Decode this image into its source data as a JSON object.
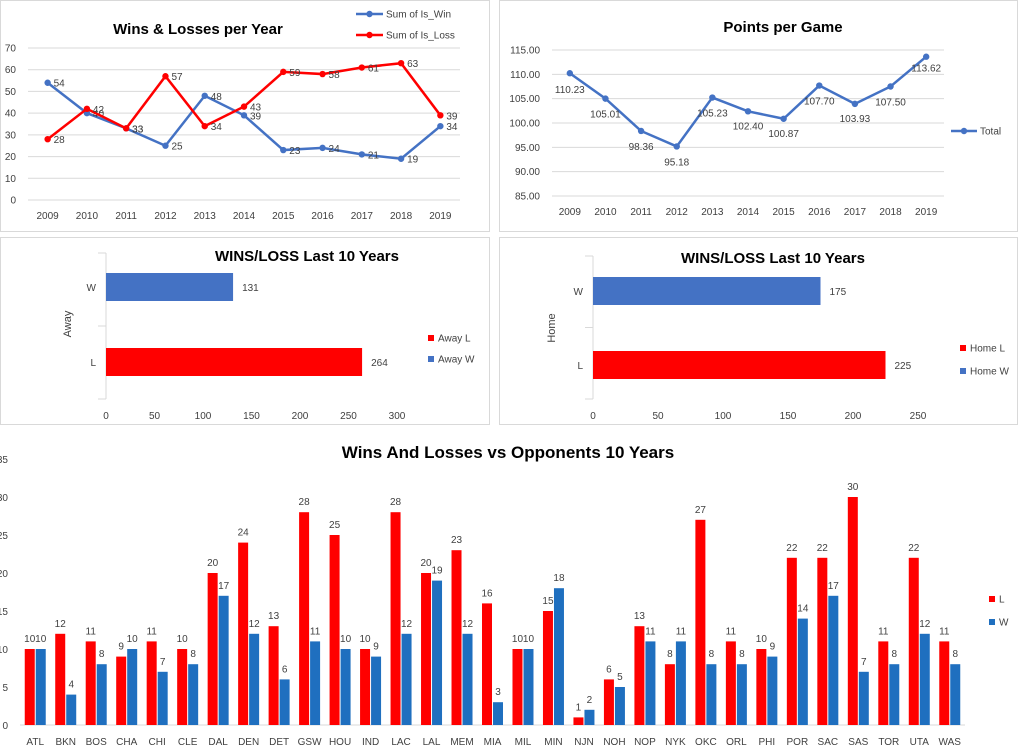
{
  "chart_data": [
    {
      "type": "line",
      "title": "Wins & Losses  per Year",
      "categories": [
        "2009",
        "2010",
        "2011",
        "2012",
        "2013",
        "2014",
        "2015",
        "2016",
        "2017",
        "2018",
        "2019"
      ],
      "series": [
        {
          "name": "Sum of Is_Win",
          "values": [
            54,
            40,
            33,
            25,
            48,
            39,
            23,
            24,
            21,
            19,
            34
          ],
          "color": "#4472c4"
        },
        {
          "name": "Sum of Is_Loss",
          "values": [
            28,
            42,
            33,
            57,
            34,
            43,
            59,
            58,
            61,
            63,
            39
          ],
          "color": "#ff0000"
        }
      ],
      "ylim": [
        0,
        70
      ],
      "yticks": [
        "0",
        "10",
        "20",
        "30",
        "40",
        "50",
        "60",
        "70"
      ],
      "grid": true,
      "legend": "top-right"
    },
    {
      "type": "line",
      "title": "Points per Game",
      "categories": [
        "2009",
        "2010",
        "2011",
        "2012",
        "2013",
        "2014",
        "2015",
        "2016",
        "2017",
        "2018",
        "2019"
      ],
      "series": [
        {
          "name": "Total",
          "values": [
            110.23,
            105.01,
            98.36,
            95.18,
            105.23,
            102.4,
            100.87,
            107.7,
            103.93,
            107.5,
            113.62
          ],
          "labels": [
            "110.23",
            "105.01",
            "98.36",
            "95.18",
            "105.23",
            "102.40",
            "100.87",
            "107.70",
            "103.93",
            "107.50",
            "113.62"
          ],
          "color": "#4472c4"
        }
      ],
      "ylim": [
        85,
        115
      ],
      "yticks": [
        "85.00",
        "90.00",
        "95.00",
        "100.00",
        "105.00",
        "110.00",
        "115.00"
      ],
      "grid": true,
      "legend": "right"
    },
    {
      "type": "bar",
      "orientation": "horizontal",
      "title": "WINS/LOSS  Last 10 Years",
      "ylabel": "Away",
      "categories": [
        "W",
        "L"
      ],
      "values": [
        131,
        264
      ],
      "colors": [
        "#4472c4",
        "#ff0000"
      ],
      "legend_entries": [
        {
          "name": "Away L",
          "color": "#ff0000"
        },
        {
          "name": "Away W",
          "color": "#4472c4"
        }
      ],
      "xlim": [
        0,
        300
      ],
      "xticks": [
        "0",
        "50",
        "100",
        "150",
        "200",
        "250",
        "300"
      ],
      "legend": "right"
    },
    {
      "type": "bar",
      "orientation": "horizontal",
      "title": "WINS/LOSS Last 10 Years",
      "ylabel": "Home",
      "categories": [
        "W",
        "L"
      ],
      "values": [
        175,
        225
      ],
      "colors": [
        "#4472c4",
        "#ff0000"
      ],
      "legend_entries": [
        {
          "name": "Home L",
          "color": "#ff0000"
        },
        {
          "name": "Home W",
          "color": "#4472c4"
        }
      ],
      "xlim": [
        0,
        250
      ],
      "xticks": [
        "0",
        "50",
        "100",
        "150",
        "200",
        "250"
      ],
      "legend": "right"
    },
    {
      "type": "bar",
      "title": "Wins And Losses vs Opponents 10 Years",
      "categories": [
        "ATL",
        "BKN",
        "BOS",
        "CHA",
        "CHI",
        "CLE",
        "DAL",
        "DEN",
        "DET",
        "GSW",
        "HOU",
        "IND",
        "LAC",
        "LAL",
        "MEM",
        "MIA",
        "MIL",
        "MIN",
        "NJN",
        "NOH",
        "NOP",
        "NYK",
        "OKC",
        "ORL",
        "PHI",
        "POR",
        "SAC",
        "SAS",
        "TOR",
        "UTA",
        "WAS"
      ],
      "series": [
        {
          "name": "L",
          "values": [
            10,
            12,
            11,
            9,
            11,
            10,
            20,
            24,
            13,
            28,
            25,
            10,
            28,
            20,
            23,
            16,
            10,
            15,
            1,
            6,
            13,
            8,
            27,
            11,
            10,
            22,
            22,
            30,
            11,
            22,
            11
          ],
          "color": "#ff0000"
        },
        {
          "name": "W",
          "values": [
            10,
            4,
            8,
            10,
            7,
            8,
            17,
            12,
            6,
            11,
            10,
            9,
            12,
            19,
            12,
            3,
            10,
            18,
            2,
            5,
            11,
            11,
            8,
            8,
            9,
            14,
            17,
            7,
            8,
            12,
            8
          ],
          "color": "#1f6fbf"
        }
      ],
      "ylim": [
        0,
        35
      ],
      "yticks": [
        "0",
        "5",
        "10",
        "15",
        "20",
        "25",
        "30",
        "35"
      ],
      "grid": false,
      "legend": "right"
    }
  ]
}
